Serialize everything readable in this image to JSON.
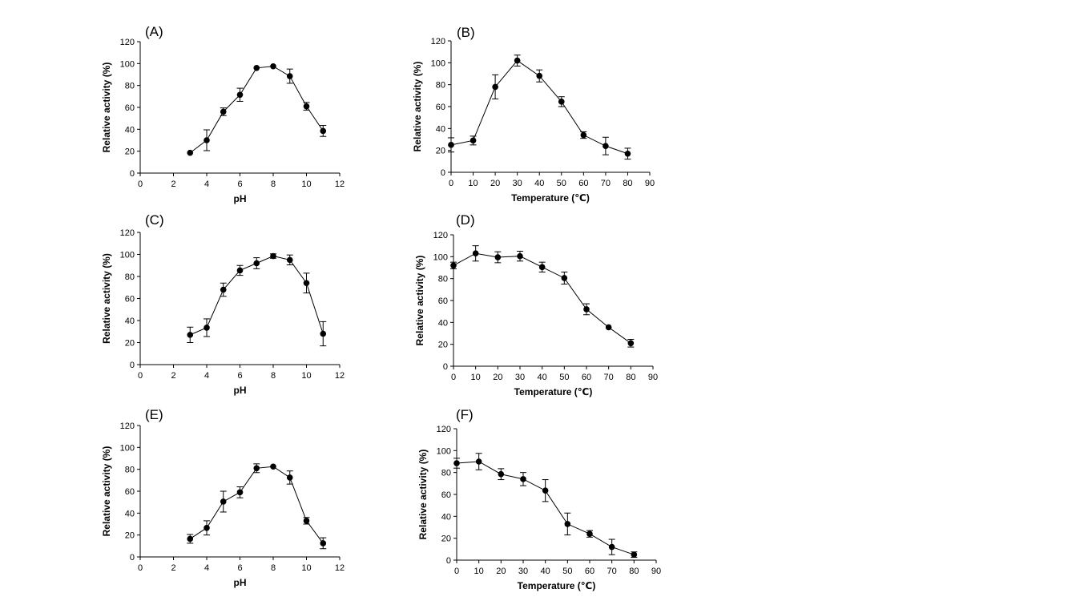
{
  "chart_data": [
    {
      "panel": "(A)",
      "type": "line",
      "xlabel": "pH",
      "ylabel": "Relative activity (%)",
      "xlim": [
        0,
        12
      ],
      "ylim": [
        0,
        120
      ],
      "xticks": [
        0,
        2,
        4,
        6,
        8,
        10,
        12
      ],
      "yticks": [
        0,
        20,
        40,
        60,
        80,
        100,
        120
      ],
      "x": [
        3,
        4,
        5,
        6,
        7,
        8,
        9,
        10,
        11
      ],
      "values": [
        18.5,
        30,
        56,
        71.5,
        96,
        97.5,
        88.5,
        61,
        38.5
      ],
      "errors": [
        0.8,
        9.5,
        3.5,
        6,
        1,
        1,
        6.5,
        3.5,
        5
      ]
    },
    {
      "panel": "(B)",
      "type": "line",
      "xlabel": "Temperature (℃)",
      "ylabel": "Relative activity (%)",
      "xlim": [
        0,
        90
      ],
      "ylim": [
        0,
        120
      ],
      "xticks": [
        0,
        10,
        20,
        30,
        40,
        50,
        60,
        70,
        80,
        90
      ],
      "yticks": [
        0,
        20,
        40,
        60,
        80,
        100,
        120
      ],
      "x": [
        0,
        10,
        20,
        30,
        40,
        50,
        60,
        70,
        80
      ],
      "values": [
        25,
        29,
        78,
        102,
        88,
        64.5,
        34,
        24,
        17
      ],
      "errors": [
        6.5,
        4,
        11,
        5,
        5.5,
        4.5,
        3,
        8,
        5
      ]
    },
    {
      "panel": "(C)",
      "type": "line",
      "xlabel": "pH",
      "ylabel": "Relative activity (%)",
      "xlim": [
        0,
        12
      ],
      "ylim": [
        0,
        120
      ],
      "xticks": [
        0,
        2,
        4,
        6,
        8,
        10,
        12
      ],
      "yticks": [
        0,
        20,
        40,
        60,
        80,
        100,
        120
      ],
      "x": [
        3,
        4,
        5,
        6,
        7,
        8,
        9,
        10,
        11
      ],
      "values": [
        27,
        33.5,
        68,
        85.5,
        92,
        98.5,
        95,
        74,
        28
      ],
      "errors": [
        7,
        8,
        6,
        4.5,
        5,
        2,
        4.5,
        9,
        11
      ]
    },
    {
      "panel": "(D)",
      "type": "line",
      "xlabel": "Temperature (℃)",
      "ylabel": "Relative activity (%)",
      "xlim": [
        0,
        90
      ],
      "ylim": [
        0,
        120
      ],
      "xticks": [
        0,
        10,
        20,
        30,
        40,
        50,
        60,
        70,
        80,
        90
      ],
      "yticks": [
        0,
        20,
        40,
        60,
        80,
        100,
        120
      ],
      "x": [
        0,
        10,
        20,
        30,
        40,
        50,
        60,
        70,
        80
      ],
      "values": [
        92,
        103,
        99.5,
        100.5,
        90.5,
        80.5,
        52,
        35.5,
        21
      ],
      "errors": [
        3,
        7,
        5,
        4.5,
        4.5,
        5.5,
        5,
        1,
        3.5
      ]
    },
    {
      "panel": "(E)",
      "type": "line",
      "xlabel": "pH",
      "ylabel": "Relative activity (%)",
      "xlim": [
        0,
        12
      ],
      "ylim": [
        0,
        120
      ],
      "xticks": [
        0,
        2,
        4,
        6,
        8,
        10,
        12
      ],
      "yticks": [
        0,
        20,
        40,
        60,
        80,
        100,
        120
      ],
      "x": [
        3,
        4,
        5,
        6,
        7,
        8,
        9,
        10,
        11
      ],
      "values": [
        16.5,
        26.5,
        50.5,
        59,
        81,
        82.5,
        72.5,
        33,
        12.5
      ],
      "errors": [
        4,
        6.5,
        9.5,
        5,
        4,
        1,
        6,
        3,
        5
      ]
    },
    {
      "panel": "(F)",
      "type": "line",
      "xlabel": "Temperature (℃)",
      "ylabel": "Relative activity (%)",
      "xlim": [
        0,
        90
      ],
      "ylim": [
        0,
        120
      ],
      "xticks": [
        0,
        10,
        20,
        30,
        40,
        50,
        60,
        70,
        80,
        90
      ],
      "yticks": [
        0,
        20,
        40,
        60,
        80,
        100,
        120
      ],
      "x": [
        0,
        10,
        20,
        30,
        40,
        50,
        60,
        70,
        80
      ],
      "values": [
        88.5,
        90,
        78.5,
        74,
        63.5,
        33,
        24,
        12,
        5
      ],
      "errors": [
        4.5,
        7.5,
        5,
        6,
        10,
        10,
        3,
        7,
        2.5
      ]
    }
  ]
}
